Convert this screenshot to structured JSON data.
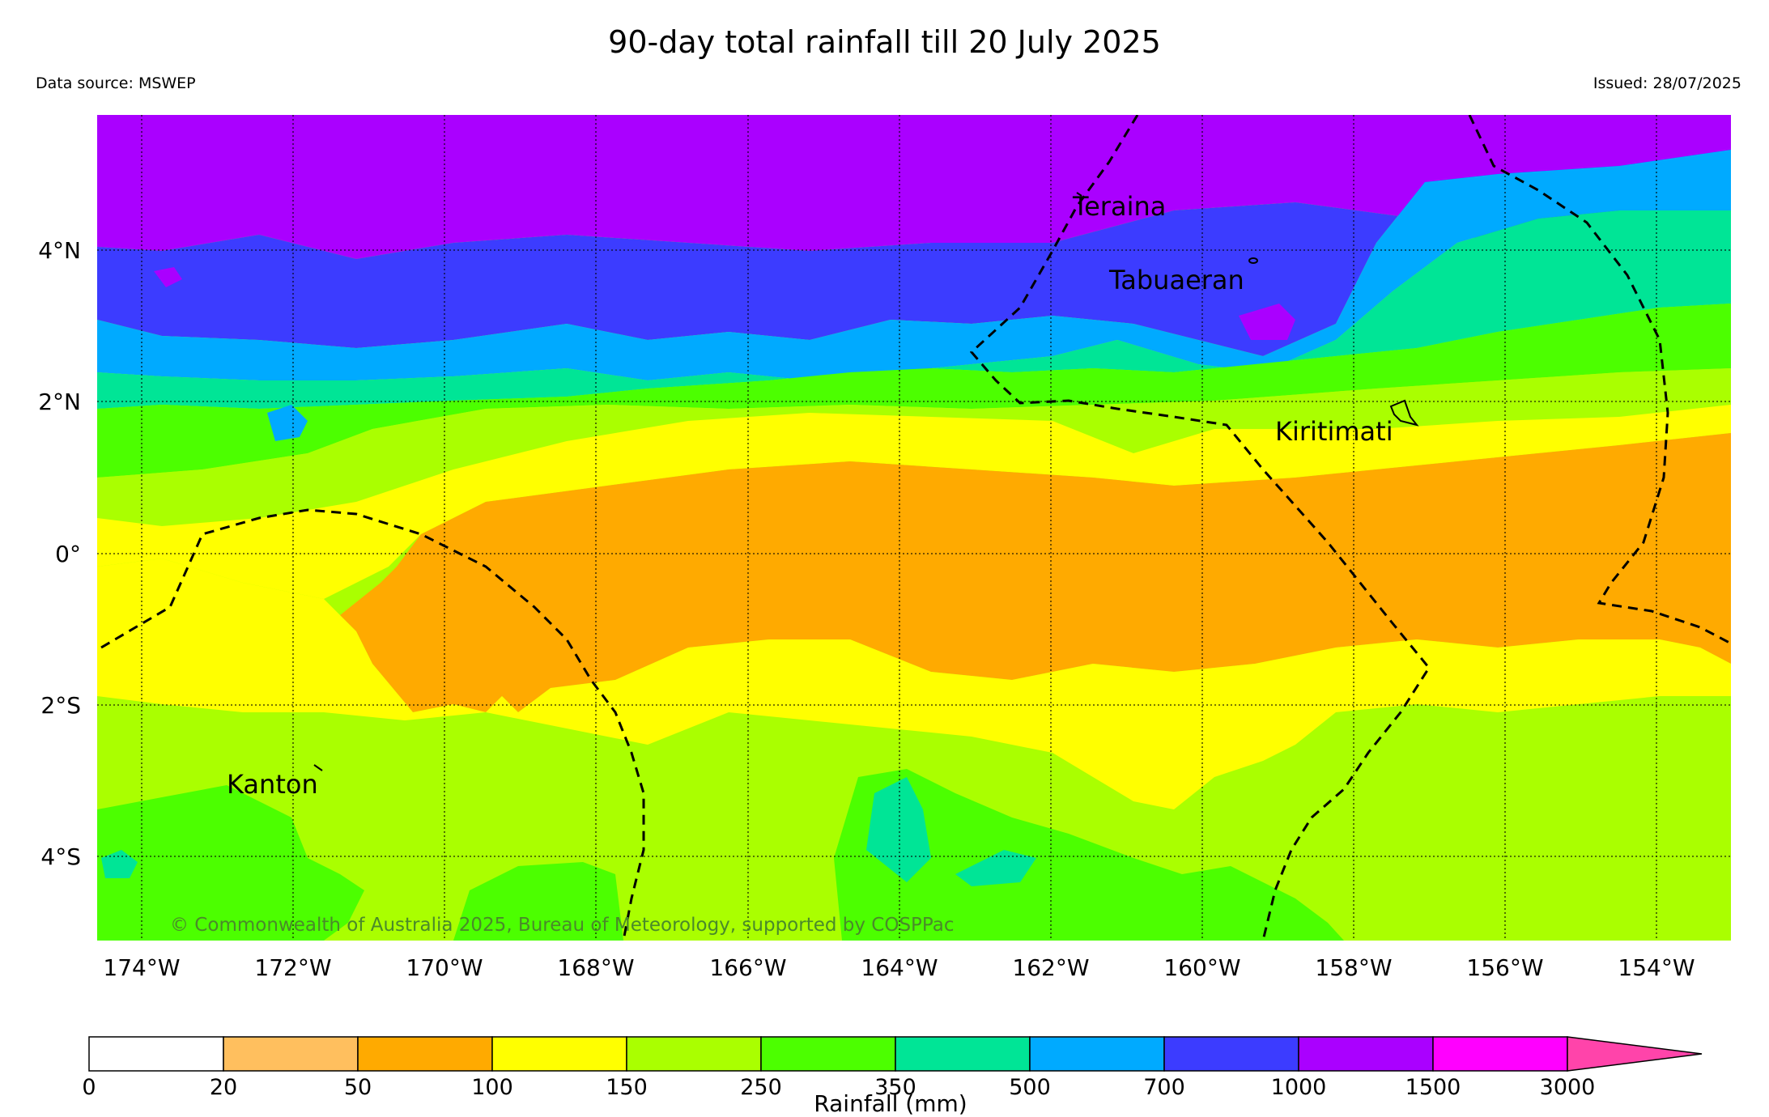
{
  "title": "90-day total rainfall till 20 July 2025",
  "data_source": "Data source: MSWEP",
  "issued": "Issued: 28/07/2025",
  "copyright": "© Commonwealth of Australia 2025, Bureau of Meteorology, supported by COSPPac",
  "map": {
    "lon_labels": [
      "174°W",
      "172°W",
      "170°W",
      "168°W",
      "166°W",
      "164°W",
      "162°W",
      "160°W",
      "158°W",
      "156°W",
      "154°W"
    ],
    "lat_labels": [
      "4°N",
      "2°N",
      "0°",
      "2°S",
      "4°S"
    ],
    "places": [
      {
        "name": "Teraina",
        "icon": "island-marker"
      },
      {
        "name": "Tabuaeran",
        "icon": "island-marker"
      },
      {
        "name": "Kiritimati",
        "icon": "island-marker"
      },
      {
        "name": "Kanton",
        "icon": "island-marker"
      }
    ]
  },
  "legend": {
    "label": "Rainfall (mm)",
    "ticks": [
      "0",
      "20",
      "50",
      "100",
      "150",
      "250",
      "350",
      "500",
      "700",
      "1000",
      "1500",
      "3000"
    ],
    "colors": [
      "#ffffff",
      "#ffbf5e",
      "#ffaa00",
      "#ffff00",
      "#aaff00",
      "#4cff00",
      "#00e596",
      "#00aaff",
      "#3c3cff",
      "#aa00ff",
      "#ff00ff",
      "#ff44aa"
    ]
  }
}
